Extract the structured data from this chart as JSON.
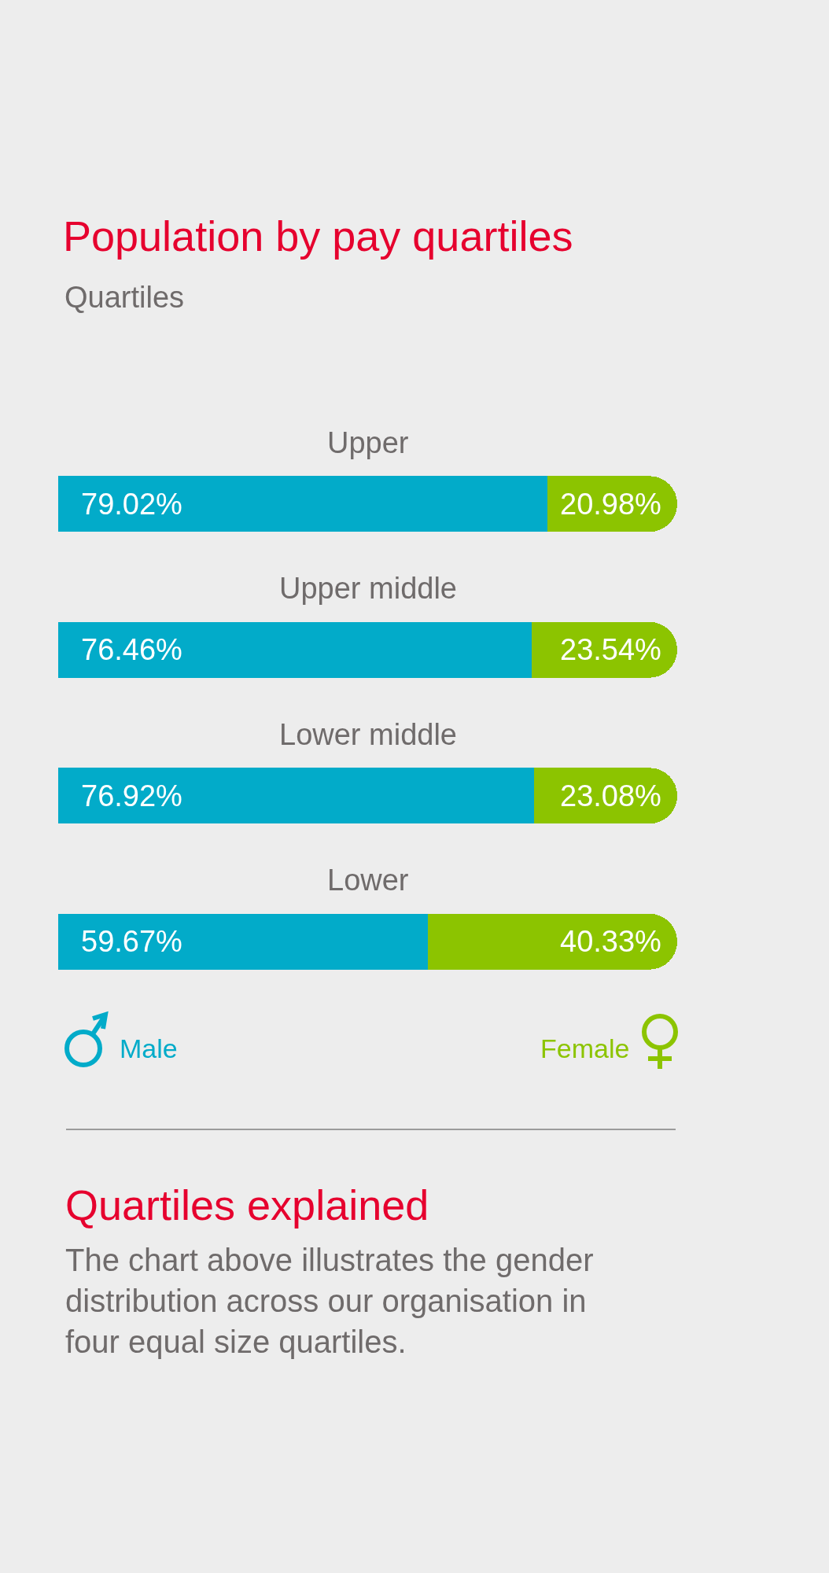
{
  "chart_data": {
    "type": "bar",
    "orientation": "horizontal",
    "stacked": true,
    "title": "Population by pay quartiles",
    "subtitle": "Quartiles",
    "categories": [
      "Upper",
      "Upper middle",
      "Lower middle",
      "Lower"
    ],
    "series": [
      {
        "name": "Male",
        "color": "#02abc9",
        "values": [
          79.02,
          76.46,
          76.92,
          59.67
        ],
        "value_labels": [
          "79.02%",
          "76.46%",
          "76.92%",
          "59.67%"
        ]
      },
      {
        "name": "Female",
        "color": "#8cc400",
        "values": [
          20.98,
          23.54,
          23.08,
          40.33
        ],
        "value_labels": [
          "20.98%",
          "23.54%",
          "23.08%",
          "40.33%"
        ]
      }
    ],
    "xlim": [
      0,
      100
    ],
    "tick_labels": "y",
    "legend": "bottom",
    "annotations": [
      "Quartiles explained",
      "The chart above illustrates the gender distribution across our organisation in four equal size quartiles."
    ]
  }
}
